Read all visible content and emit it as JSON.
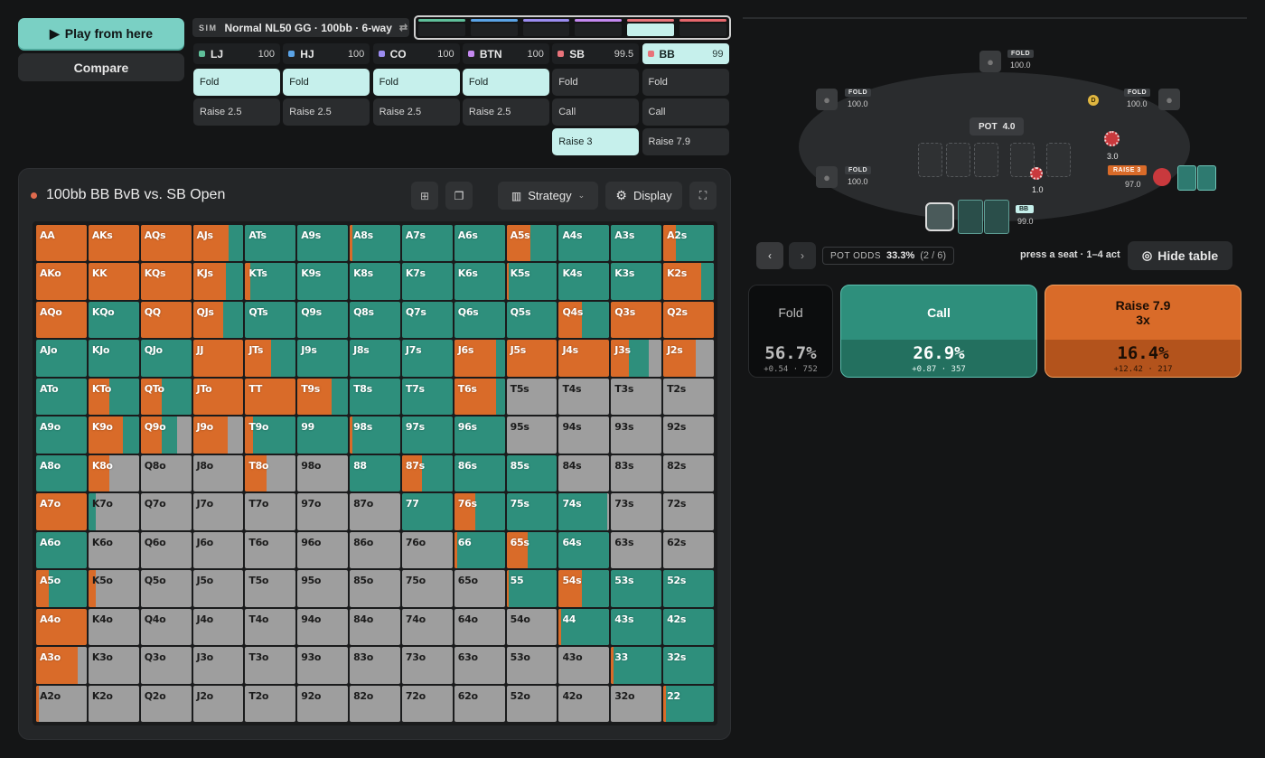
{
  "controls": {
    "play_label": "Play from here",
    "compare_label": "Compare"
  },
  "sim": {
    "tag": "SIM",
    "title": "Normal NL50 GG · 100bb · 6-way",
    "switch_icon": "⇄"
  },
  "progress_colors": [
    "#5fbf9a",
    "#5aa3e6",
    "#9b8cf0",
    "#c488f0",
    "#e8737a",
    "#e6676d"
  ],
  "positions": [
    {
      "name": "LJ",
      "stack": "100",
      "color": "#5fbf9a",
      "actions": [
        "Fold",
        "Raise 2.5"
      ],
      "selected": 0
    },
    {
      "name": "HJ",
      "stack": "100",
      "color": "#5aa3e6",
      "actions": [
        "Fold",
        "Raise 2.5"
      ],
      "selected": 0
    },
    {
      "name": "CO",
      "stack": "100",
      "color": "#9b8cf0",
      "actions": [
        "Fold",
        "Raise 2.5"
      ],
      "selected": 0
    },
    {
      "name": "BTN",
      "stack": "100",
      "color": "#c488f0",
      "actions": [
        "Fold",
        "Raise 2.5"
      ],
      "selected": 0
    },
    {
      "name": "SB",
      "stack": "99.5",
      "color": "#e8737a",
      "actions": [
        "Fold",
        "Call",
        "Raise 3"
      ],
      "selected": 2
    },
    {
      "name": "BB",
      "stack": "99",
      "color": "#e8737a",
      "actions": [
        "Fold",
        "Call",
        "Raise 7.9"
      ],
      "selected": -1,
      "active": true
    }
  ],
  "panel": {
    "title": "100bb BB BvB vs. SB Open",
    "strategy_label": "Strategy",
    "display_label": "Display"
  },
  "colors": {
    "raise": "#d96b29",
    "call": "#2e8f7c",
    "fold": "#9e9e9e",
    "accent": "#7ad0c4"
  },
  "grid": {
    "labels": [
      [
        "AA",
        "AKs",
        "AQs",
        "AJs",
        "ATs",
        "A9s",
        "A8s",
        "A7s",
        "A6s",
        "A5s",
        "A4s",
        "A3s",
        "A2s"
      ],
      [
        "AKo",
        "KK",
        "KQs",
        "KJs",
        "KTs",
        "K9s",
        "K8s",
        "K7s",
        "K6s",
        "K5s",
        "K4s",
        "K3s",
        "K2s"
      ],
      [
        "AQo",
        "KQo",
        "QQ",
        "QJs",
        "QTs",
        "Q9s",
        "Q8s",
        "Q7s",
        "Q6s",
        "Q5s",
        "Q4s",
        "Q3s",
        "Q2s"
      ],
      [
        "AJo",
        "KJo",
        "QJo",
        "JJ",
        "JTs",
        "J9s",
        "J8s",
        "J7s",
        "J6s",
        "J5s",
        "J4s",
        "J3s",
        "J2s"
      ],
      [
        "ATo",
        "KTo",
        "QTo",
        "JTo",
        "TT",
        "T9s",
        "T8s",
        "T7s",
        "T6s",
        "T5s",
        "T4s",
        "T3s",
        "T2s"
      ],
      [
        "A9o",
        "K9o",
        "Q9o",
        "J9o",
        "T9o",
        "99",
        "98s",
        "97s",
        "96s",
        "95s",
        "94s",
        "93s",
        "92s"
      ],
      [
        "A8o",
        "K8o",
        "Q8o",
        "J8o",
        "T8o",
        "98o",
        "88",
        "87s",
        "86s",
        "85s",
        "84s",
        "83s",
        "82s"
      ],
      [
        "A7o",
        "K7o",
        "Q7o",
        "J7o",
        "T7o",
        "97o",
        "87o",
        "77",
        "76s",
        "75s",
        "74s",
        "73s",
        "72s"
      ],
      [
        "A6o",
        "K6o",
        "Q6o",
        "J6o",
        "T6o",
        "96o",
        "86o",
        "76o",
        "66",
        "65s",
        "64s",
        "63s",
        "62s"
      ],
      [
        "A5o",
        "K5o",
        "Q5o",
        "J5o",
        "T5o",
        "95o",
        "85o",
        "75o",
        "65o",
        "55",
        "54s",
        "53s",
        "52s"
      ],
      [
        "A4o",
        "K4o",
        "Q4o",
        "J4o",
        "T4o",
        "94o",
        "84o",
        "74o",
        "64o",
        "54o",
        "44",
        "43s",
        "42s"
      ],
      [
        "A3o",
        "K3o",
        "Q3o",
        "J3o",
        "T3o",
        "93o",
        "83o",
        "73o",
        "63o",
        "53o",
        "43o",
        "33",
        "32s"
      ],
      [
        "A2o",
        "K2o",
        "Q2o",
        "J2o",
        "T2o",
        "92o",
        "82o",
        "72o",
        "62o",
        "52o",
        "42o",
        "32o",
        "22"
      ]
    ],
    "raise_pct": [
      [
        100,
        100,
        100,
        70,
        0,
        0,
        5,
        0,
        0,
        48,
        0,
        0,
        25
      ],
      [
        100,
        100,
        100,
        65,
        10,
        0,
        0,
        0,
        0,
        5,
        0,
        0,
        75
      ],
      [
        100,
        0,
        100,
        60,
        0,
        0,
        0,
        0,
        0,
        0,
        45,
        100,
        100
      ],
      [
        0,
        0,
        0,
        100,
        52,
        0,
        0,
        0,
        82,
        100,
        100,
        35,
        65
      ],
      [
        0,
        42,
        42,
        100,
        100,
        68,
        0,
        0,
        82,
        0,
        0,
        0,
        0
      ],
      [
        0,
        68,
        42,
        68,
        15,
        0,
        5,
        0,
        0,
        0,
        0,
        0,
        0
      ],
      [
        0,
        42,
        0,
        0,
        42,
        0,
        0,
        40,
        0,
        0,
        0,
        0,
        0
      ],
      [
        100,
        0,
        0,
        0,
        0,
        0,
        0,
        0,
        42,
        0,
        0,
        0,
        0
      ],
      [
        0,
        0,
        0,
        0,
        0,
        0,
        0,
        0,
        5,
        42,
        0,
        0,
        0
      ],
      [
        25,
        15,
        0,
        0,
        0,
        0,
        0,
        0,
        0,
        5,
        45,
        0,
        0
      ],
      [
        100,
        0,
        0,
        0,
        0,
        0,
        0,
        0,
        0,
        0,
        5,
        0,
        0
      ],
      [
        82,
        0,
        0,
        0,
        0,
        0,
        0,
        0,
        0,
        0,
        0,
        5,
        0
      ],
      [
        5,
        0,
        0,
        0,
        0,
        0,
        0,
        0,
        0,
        0,
        0,
        0,
        5
      ]
    ],
    "call_pct": [
      [
        0,
        0,
        0,
        30,
        100,
        100,
        95,
        100,
        100,
        52,
        100,
        100,
        75
      ],
      [
        0,
        0,
        0,
        35,
        90,
        100,
        100,
        100,
        100,
        95,
        100,
        100,
        25
      ],
      [
        0,
        100,
        0,
        40,
        100,
        100,
        100,
        100,
        100,
        100,
        55,
        0,
        0
      ],
      [
        100,
        100,
        100,
        0,
        48,
        100,
        100,
        100,
        18,
        0,
        0,
        40,
        0
      ],
      [
        100,
        58,
        58,
        0,
        0,
        32,
        100,
        100,
        18,
        0,
        0,
        0,
        0
      ],
      [
        100,
        32,
        30,
        0,
        85,
        100,
        95,
        100,
        100,
        0,
        0,
        0,
        0
      ],
      [
        100,
        0,
        0,
        0,
        0,
        0,
        100,
        60,
        100,
        100,
        0,
        0,
        0
      ],
      [
        0,
        15,
        0,
        0,
        0,
        0,
        0,
        100,
        58,
        100,
        95,
        0,
        0
      ],
      [
        100,
        0,
        0,
        0,
        0,
        0,
        0,
        0,
        95,
        58,
        100,
        0,
        0
      ],
      [
        75,
        0,
        0,
        0,
        0,
        0,
        0,
        0,
        0,
        95,
        55,
        100,
        100
      ],
      [
        0,
        0,
        0,
        0,
        0,
        0,
        0,
        0,
        0,
        0,
        95,
        100,
        100
      ],
      [
        0,
        0,
        0,
        0,
        0,
        0,
        0,
        0,
        0,
        0,
        0,
        95,
        100
      ],
      [
        0,
        0,
        0,
        0,
        0,
        0,
        0,
        0,
        0,
        0,
        0,
        0,
        95
      ]
    ]
  },
  "table": {
    "pot_label": "POT",
    "pot_value": "4.0",
    "seats": [
      {
        "seat": "LJ",
        "tag": "FOLD",
        "stack": "100.0"
      },
      {
        "seat": "HJ",
        "tag": "FOLD",
        "stack": "100.0"
      },
      {
        "seat": "CO",
        "tag": "FOLD",
        "stack": "100.0"
      },
      {
        "seat": "BTN",
        "tag": "FOLD",
        "stack": "100.0",
        "dealer": "D"
      },
      {
        "seat": "SB",
        "tag": "RAISE 3",
        "stack": "97.0",
        "bet": "3.0"
      },
      {
        "seat": "BB",
        "tag": "BB",
        "stack": "99.0",
        "bet": "1.0"
      }
    ],
    "pot_odds_label": "POT ODDS",
    "pot_odds_value": "33.3%",
    "pot_odds_ratio": "(2 / 6)",
    "hint": "press a seat · 1–4 act",
    "hide_label": "Hide table"
  },
  "actions_summary": [
    {
      "label": "Fold",
      "label2": "",
      "pct": "56.7%",
      "ev": "+0.54",
      "combos": "752"
    },
    {
      "label": "Call",
      "label2": "",
      "pct": "26.9%",
      "ev": "+0.87",
      "combos": "357"
    },
    {
      "label": "Raise 7.9",
      "label2": "3x",
      "pct": "16.4%",
      "ev": "+12.42",
      "combos": "217"
    }
  ]
}
